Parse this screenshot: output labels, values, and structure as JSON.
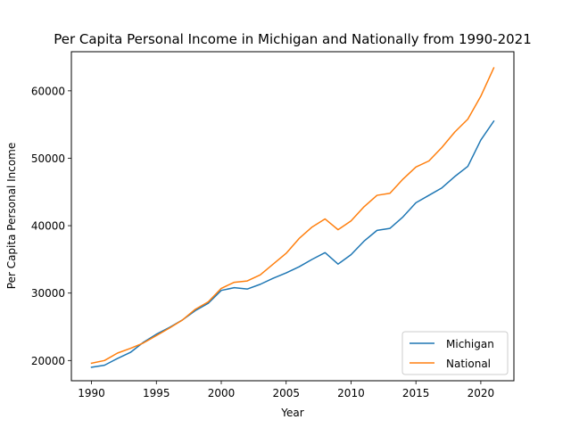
{
  "chart_data": {
    "type": "line",
    "title": "Per Capita Personal Income in Michigan and Nationally from 1990-2021",
    "xlabel": "Year",
    "ylabel": "Per Capita Personal Income",
    "xlim": [
      1988.45,
      2022.55
    ],
    "ylim": [
      17000,
      65800
    ],
    "x_ticks": [
      1990,
      1995,
      2000,
      2005,
      2010,
      2015,
      2020
    ],
    "y_ticks": [
      20000,
      30000,
      40000,
      50000,
      60000
    ],
    "x_tick_labels": [
      "1990",
      "1995",
      "2000",
      "2005",
      "2010",
      "2015",
      "2020"
    ],
    "y_tick_labels": [
      "20000",
      "30000",
      "40000",
      "50000",
      "60000"
    ],
    "legend_position": "lower-right",
    "grid": false,
    "x": [
      1990,
      1991,
      1992,
      1993,
      1994,
      1995,
      1996,
      1997,
      1998,
      1999,
      2000,
      2001,
      2002,
      2003,
      2004,
      2005,
      2006,
      2007,
      2008,
      2009,
      2010,
      2011,
      2012,
      2013,
      2014,
      2015,
      2016,
      2017,
      2018,
      2019,
      2020,
      2021
    ],
    "series": [
      {
        "name": "Michigan",
        "color": "#1f77b4",
        "values": [
          19000,
          19300,
          20300,
          21200,
          22700,
          23900,
          24900,
          26000,
          27400,
          28500,
          30400,
          30800,
          30600,
          31300,
          32200,
          33000,
          33900,
          35000,
          36000,
          34300,
          35700,
          37700,
          39300,
          39600,
          41300,
          43400,
          44500,
          45600,
          47300,
          48800,
          52700,
          55500
        ]
      },
      {
        "name": "National",
        "color": "#ff7f0e",
        "values": [
          19600,
          20000,
          21100,
          21800,
          22600,
          23700,
          24800,
          26000,
          27600,
          28700,
          30700,
          31600,
          31800,
          32700,
          34300,
          35900,
          38100,
          39800,
          41000,
          39400,
          40700,
          42800,
          44500,
          44800,
          46900,
          48700,
          49600,
          51600,
          53900,
          55800,
          59200,
          63400
        ]
      }
    ]
  }
}
